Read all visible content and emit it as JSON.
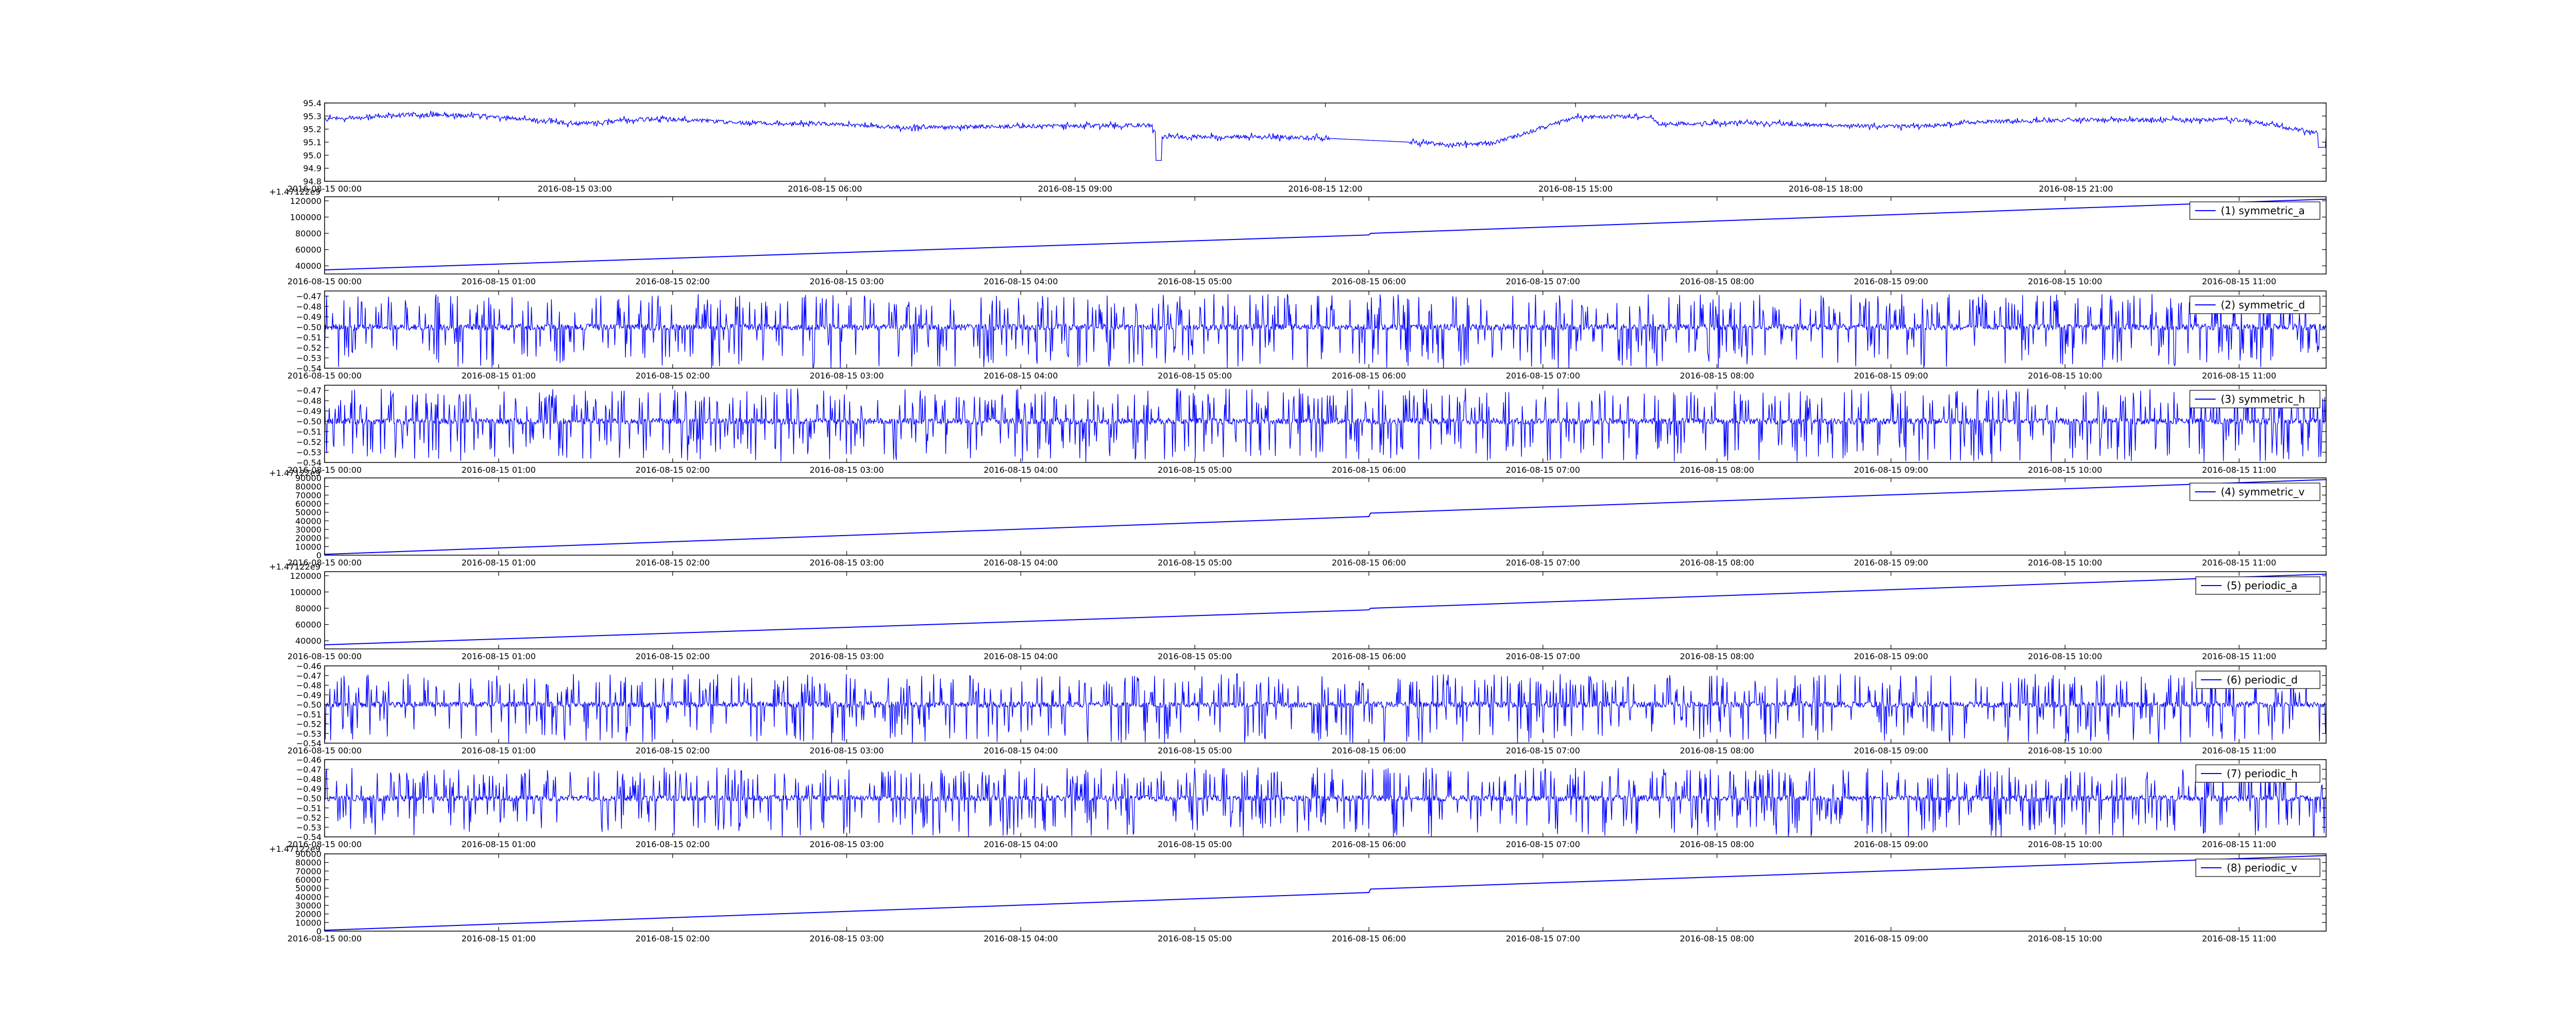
{
  "figure": {
    "background": "#ffffff",
    "line_color": "#0000ff",
    "axes_color": "#000000"
  },
  "chart_data": [
    {
      "type": "line",
      "style": "noisy-level",
      "base": 95.25,
      "noise": 0.03,
      "ylim": [
        94.8,
        95.4
      ],
      "yticks": [
        "94.8",
        "94.9",
        "95.0",
        "95.1",
        "95.2",
        "95.3",
        "95.4"
      ],
      "xticks": [
        "2016-08-15 00:00",
        "2016-08-15 03:00",
        "2016-08-15 06:00",
        "2016-08-15 09:00",
        "2016-08-15 12:00",
        "2016-08-15 15:00",
        "2016-08-15 18:00",
        "2016-08-15 21:00"
      ],
      "x_range_hours": [
        0,
        24
      ],
      "x": [
        0,
        1,
        2,
        3,
        4,
        5,
        6,
        7,
        8,
        9.9,
        10,
        11,
        12,
        13,
        13.5,
        14,
        15,
        15.9,
        16,
        17,
        18,
        19,
        20,
        21,
        22,
        23,
        23.9,
        24
      ],
      "y": [
        95.28,
        95.31,
        95.3,
        95.24,
        95.28,
        95.25,
        95.24,
        95.21,
        95.22,
        95.23,
        95.14,
        95.14,
        95.13,
        95.1,
        95.08,
        95.09,
        95.29,
        95.3,
        95.24,
        95.25,
        95.23,
        95.22,
        95.26,
        95.27,
        95.27,
        95.27,
        95.17,
        95.13
      ],
      "offset_label": "",
      "legend": ""
    },
    {
      "type": "line",
      "style": "ramp",
      "ylim": [
        30000,
        125000
      ],
      "yticks": [
        "40000",
        "60000",
        "80000",
        "100000",
        "120000"
      ],
      "xticks": [
        "2016-08-15 00:00",
        "2016-08-15 01:00",
        "2016-08-15 02:00",
        "2016-08-15 03:00",
        "2016-08-15 04:00",
        "2016-08-15 05:00",
        "2016-08-15 06:00",
        "2016-08-15 07:00",
        "2016-08-15 08:00",
        "2016-08-15 09:00",
        "2016-08-15 10:00",
        "2016-08-15 11:00"
      ],
      "x_range_hours": [
        0,
        11.5
      ],
      "x": [
        0,
        6,
        6.01,
        11.5
      ],
      "y": [
        35000,
        78000,
        80000,
        122000
      ],
      "offset_label": "+1.47122e9",
      "legend": "(1) symmetric_a"
    },
    {
      "type": "line",
      "style": "spiky",
      "ylim": [
        -0.54,
        -0.465
      ],
      "base": -0.5,
      "yticks": [
        "−0.54",
        "−0.53",
        "−0.52",
        "−0.51",
        "−0.50",
        "−0.49",
        "−0.48",
        "−0.47"
      ],
      "xticks": [
        "2016-08-15 00:00",
        "2016-08-15 01:00",
        "2016-08-15 02:00",
        "2016-08-15 03:00",
        "2016-08-15 04:00",
        "2016-08-15 05:00",
        "2016-08-15 06:00",
        "2016-08-15 07:00",
        "2016-08-15 08:00",
        "2016-08-15 09:00",
        "2016-08-15 10:00",
        "2016-08-15 11:00"
      ],
      "x_range_hours": [
        0,
        11.5
      ],
      "offset_label": "",
      "legend": "(2) symmetric_d"
    },
    {
      "type": "line",
      "style": "spiky",
      "ylim": [
        -0.54,
        -0.465
      ],
      "base": -0.5,
      "yticks": [
        "−0.54",
        "−0.53",
        "−0.52",
        "−0.51",
        "−0.50",
        "−0.49",
        "−0.48",
        "−0.47"
      ],
      "xticks": [
        "2016-08-15 00:00",
        "2016-08-15 01:00",
        "2016-08-15 02:00",
        "2016-08-15 03:00",
        "2016-08-15 04:00",
        "2016-08-15 05:00",
        "2016-08-15 06:00",
        "2016-08-15 07:00",
        "2016-08-15 08:00",
        "2016-08-15 09:00",
        "2016-08-15 10:00",
        "2016-08-15 11:00"
      ],
      "x_range_hours": [
        0,
        11.5
      ],
      "offset_label": "",
      "legend": "(3) symmetric_h"
    },
    {
      "type": "line",
      "style": "ramp",
      "ylim": [
        0,
        90000
      ],
      "yticks": [
        "0",
        "10000",
        "20000",
        "30000",
        "40000",
        "50000",
        "60000",
        "70000",
        "80000",
        "90000"
      ],
      "xticks": [
        "2016-08-15 00:00",
        "2016-08-15 01:00",
        "2016-08-15 02:00",
        "2016-08-15 03:00",
        "2016-08-15 04:00",
        "2016-08-15 05:00",
        "2016-08-15 06:00",
        "2016-08-15 07:00",
        "2016-08-15 08:00",
        "2016-08-15 09:00",
        "2016-08-15 10:00",
        "2016-08-15 11:00"
      ],
      "x_range_hours": [
        0,
        11.5
      ],
      "x": [
        0,
        6,
        6.01,
        11.5
      ],
      "y": [
        1000,
        45000,
        49000,
        88000
      ],
      "offset_label": "+1.47122e9",
      "legend": "(4) symmetric_v"
    },
    {
      "type": "line",
      "style": "ramp",
      "ylim": [
        30000,
        125000
      ],
      "yticks": [
        "40000",
        "60000",
        "80000",
        "100000",
        "120000"
      ],
      "xticks": [
        "2016-08-15 00:00",
        "2016-08-15 01:00",
        "2016-08-15 02:00",
        "2016-08-15 03:00",
        "2016-08-15 04:00",
        "2016-08-15 05:00",
        "2016-08-15 06:00",
        "2016-08-15 07:00",
        "2016-08-15 08:00",
        "2016-08-15 09:00",
        "2016-08-15 10:00",
        "2016-08-15 11:00"
      ],
      "x_range_hours": [
        0,
        11.5
      ],
      "x": [
        0,
        6,
        6.01,
        11.5
      ],
      "y": [
        35000,
        78000,
        80000,
        122000
      ],
      "offset_label": "+1.47122e9",
      "legend": "(5) periodic_a"
    },
    {
      "type": "line",
      "style": "spiky",
      "ylim": [
        -0.54,
        -0.46
      ],
      "base": -0.5,
      "yticks": [
        "−0.54",
        "−0.53",
        "−0.52",
        "−0.51",
        "−0.50",
        "−0.49",
        "−0.48",
        "−0.47",
        "−0.46"
      ],
      "xticks": [
        "2016-08-15 00:00",
        "2016-08-15 01:00",
        "2016-08-15 02:00",
        "2016-08-15 03:00",
        "2016-08-15 04:00",
        "2016-08-15 05:00",
        "2016-08-15 06:00",
        "2016-08-15 07:00",
        "2016-08-15 08:00",
        "2016-08-15 09:00",
        "2016-08-15 10:00",
        "2016-08-15 11:00"
      ],
      "x_range_hours": [
        0,
        11.5
      ],
      "offset_label": "",
      "legend": "(6) periodic_d"
    },
    {
      "type": "line",
      "style": "spiky",
      "ylim": [
        -0.54,
        -0.46
      ],
      "base": -0.5,
      "yticks": [
        "−0.54",
        "−0.53",
        "−0.52",
        "−0.51",
        "−0.50",
        "−0.49",
        "−0.48",
        "−0.47",
        "−0.46"
      ],
      "xticks": [
        "2016-08-15 00:00",
        "2016-08-15 01:00",
        "2016-08-15 02:00",
        "2016-08-15 03:00",
        "2016-08-15 04:00",
        "2016-08-15 05:00",
        "2016-08-15 06:00",
        "2016-08-15 07:00",
        "2016-08-15 08:00",
        "2016-08-15 09:00",
        "2016-08-15 10:00",
        "2016-08-15 11:00"
      ],
      "x_range_hours": [
        0,
        11.5
      ],
      "offset_label": "",
      "legend": "(7) periodic_h"
    },
    {
      "type": "line",
      "style": "ramp",
      "ylim": [
        0,
        90000
      ],
      "yticks": [
        "0",
        "10000",
        "20000",
        "30000",
        "40000",
        "50000",
        "60000",
        "70000",
        "80000",
        "90000"
      ],
      "xticks": [
        "2016-08-15 00:00",
        "2016-08-15 01:00",
        "2016-08-15 02:00",
        "2016-08-15 03:00",
        "2016-08-15 04:00",
        "2016-08-15 05:00",
        "2016-08-15 06:00",
        "2016-08-15 07:00",
        "2016-08-15 08:00",
        "2016-08-15 09:00",
        "2016-08-15 10:00",
        "2016-08-15 11:00"
      ],
      "x_range_hours": [
        0,
        11.5
      ],
      "x": [
        0,
        6,
        6.01,
        11.5
      ],
      "y": [
        1000,
        45000,
        49000,
        88000
      ],
      "offset_label": "+1.47122e9",
      "legend": "(8) periodic_v"
    }
  ]
}
